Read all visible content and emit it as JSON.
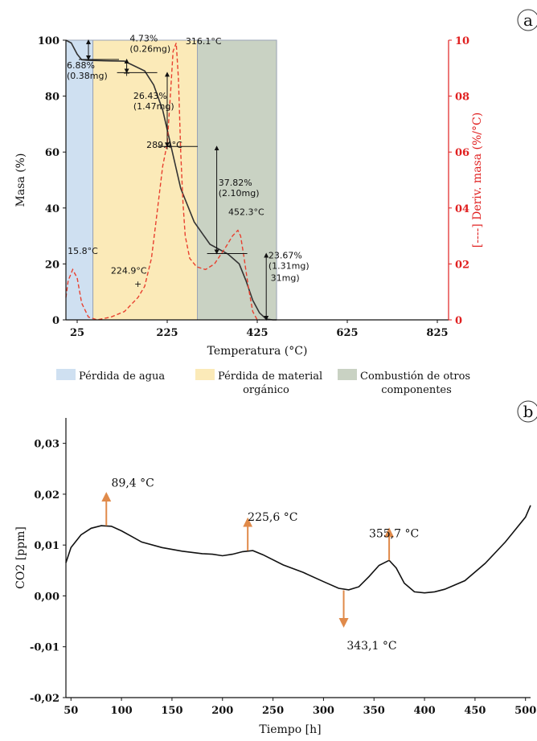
{
  "chart_data": [
    {
      "id": "a",
      "panel_label": "a",
      "type": "line",
      "xlabel": "Temperatura (°C)",
      "ylabel": "Masa (%)",
      "y2label": "[----] Deriv. masa (%/°C)",
      "xlim": [
        0,
        850
      ],
      "ylim": [
        0,
        100
      ],
      "y2lim": [
        0,
        10
      ],
      "x_ticks": [
        "25",
        "225",
        "425",
        "625",
        "825"
      ],
      "y_ticks": [
        "0",
        "20",
        "40",
        "60",
        "80",
        "100"
      ],
      "y2_ticks": [
        "0",
        "02",
        "04",
        "06",
        "08",
        "10"
      ],
      "regions": [
        {
          "name": "Pérdida de agua",
          "x_start": 0,
          "x_end": 60,
          "color": "#cfe0f1"
        },
        {
          "name": "Pérdida de material orgánico",
          "x_start": 60,
          "x_end": 292,
          "color": "#fbeab8"
        },
        {
          "name": "Combustión de otros componentes",
          "x_start": 292,
          "x_end": 468,
          "color": "#c9d2c3"
        }
      ],
      "legend_lines": [
        [
          "Pérdida de agua"
        ],
        [
          "Pérdida de material",
          "orgánico"
        ],
        [
          "Combustión de otros",
          "componentes"
        ]
      ],
      "series": [
        {
          "role": "mass",
          "axis": "left",
          "color": "#333333",
          "dash": "solid",
          "x": [
            0,
            12,
            25,
            35,
            50,
            100,
            130,
            175,
            195,
            215,
            235,
            255,
            285,
            320,
            360,
            385,
            400,
            415,
            430,
            445,
            460,
            468
          ],
          "y": [
            100,
            99,
            95,
            93,
            92.8,
            92.6,
            92.5,
            89,
            84,
            75,
            61,
            47,
            35,
            27,
            23.5,
            20,
            14,
            7,
            2.5,
            0.3,
            0,
            0
          ]
        },
        {
          "role": "derivative",
          "axis": "right",
          "color": "#e8402f",
          "dash": "dashed",
          "x": [
            0,
            5,
            15,
            25,
            35,
            50,
            70,
            100,
            130,
            160,
            175,
            190,
            200,
            215,
            225,
            232,
            238,
            245,
            250,
            255,
            260,
            265,
            275,
            290,
            310,
            330,
            355,
            370,
            382,
            388,
            395,
            405,
            415,
            425,
            430
          ],
          "y": [
            0.8,
            1.4,
            1.8,
            1.5,
            0.6,
            0.1,
            0,
            0.1,
            0.3,
            0.8,
            1.2,
            2.2,
            3.5,
            5.5,
            6.3,
            8.0,
            9.6,
            9.9,
            8.6,
            6.0,
            4.2,
            3.0,
            2.2,
            1.9,
            1.8,
            2.0,
            2.6,
            3.0,
            3.2,
            3.0,
            2.3,
            1.2,
            0.3,
            0,
            0
          ]
        }
      ],
      "step_markers": [
        {
          "x": 50,
          "from": 100,
          "to": 93.1
        },
        {
          "x": 135,
          "from": 93.1,
          "to": 88.4
        },
        {
          "x": 225,
          "from": 88.4,
          "to": 62
        },
        {
          "x": 335,
          "from": 62,
          "to": 23.7
        },
        {
          "x": 445,
          "from": 23.7,
          "to": 0
        }
      ],
      "annotations": [
        {
          "lines": [
            "6.88%",
            "(0.38mg)"
          ],
          "x": 0,
          "y": 90
        },
        {
          "lines": [
            "4.73%",
            "(0.26mg)"
          ],
          "x": 140,
          "y": 99.5
        },
        {
          "lines": [
            "316.1°C"
          ],
          "x": 264,
          "y": 98.5
        },
        {
          "lines": [
            "26.43%",
            "(1.47mg)"
          ],
          "x": 148,
          "y": 79
        },
        {
          "lines": [
            "289.4°C"
          ],
          "x": 177,
          "y": 61.5
        },
        {
          "lines": [
            "37.82%",
            "(2.10mg)"
          ],
          "x": 337,
          "y": 48
        },
        {
          "lines": [
            "452.3°C"
          ],
          "x": 359,
          "y": 37.5
        },
        {
          "lines": [
            "15.8°C"
          ],
          "x": 2,
          "y": 23.5
        },
        {
          "lines": [
            "224.9°C"
          ],
          "x": 98,
          "y": 16.5
        },
        {
          "lines": [
            "23.67%",
            "(1.31mg)"
          ],
          "x": 448,
          "y": 22
        },
        {
          "lines": [
            "31mg)"
          ],
          "x": 453,
          "y": 14
        }
      ],
      "peak_markers": [
        {
          "x": 135,
          "y": 88.4
        },
        {
          "x": 225,
          "y": 62
        },
        {
          "x": 160,
          "y": 13
        }
      ]
    },
    {
      "id": "b",
      "panel_label": "b",
      "type": "line",
      "xlabel": "Tiempo [h]",
      "ylabel": "CO2 [ppm]",
      "xlim": [
        45,
        505
      ],
      "ylim": [
        -0.02,
        0.035
      ],
      "x_ticks": [
        "50",
        "100",
        "150",
        "200",
        "250",
        "300",
        "350",
        "400",
        "450",
        "500"
      ],
      "y_ticks": [
        "-0,02",
        "-0,01",
        "0,00",
        "0,01",
        "0,02",
        "0,03"
      ],
      "series": [
        {
          "color": "#111111",
          "x": [
            45,
            50,
            60,
            70,
            80,
            90,
            100,
            110,
            120,
            140,
            160,
            180,
            190,
            200,
            210,
            220,
            230,
            240,
            260,
            280,
            300,
            315,
            325,
            335,
            345,
            355,
            365,
            372,
            380,
            390,
            400,
            410,
            420,
            440,
            460,
            480,
            500,
            505
          ],
          "y": [
            0.0065,
            0.0095,
            0.012,
            0.0133,
            0.0138,
            0.0137,
            0.0128,
            0.0117,
            0.0106,
            0.0095,
            0.0088,
            0.0083,
            0.0082,
            0.0079,
            0.0082,
            0.0087,
            0.0089,
            0.0081,
            0.0061,
            0.0046,
            0.0028,
            0.0015,
            0.0012,
            0.0018,
            0.0038,
            0.006,
            0.007,
            0.0055,
            0.0025,
            0.0008,
            0.0006,
            0.0008,
            0.0013,
            0.003,
            0.0064,
            0.0106,
            0.0155,
            0.0178
          ]
        }
      ],
      "arrows": [
        {
          "label": "89,4 °C",
          "x": 85,
          "y_from": 0.0138,
          "y_to": 0.0195,
          "direction": "up",
          "label_x": 90,
          "label_y": 0.0215
        },
        {
          "label": "225,6 °C",
          "x": 225,
          "y_from": 0.0089,
          "y_to": 0.0145,
          "direction": "up",
          "label_x": 225,
          "label_y": 0.0148
        },
        {
          "label": "355,7 °C",
          "x": 365,
          "y_from": 0.007,
          "y_to": 0.0125,
          "direction": "up",
          "label_x": 345,
          "label_y": 0.0115
        },
        {
          "label": "343,1 °C",
          "x": 320,
          "y_from": 0.0011,
          "y_to": -0.0053,
          "direction": "down",
          "label_x": 323,
          "label_y": -0.0105
        }
      ],
      "arrow_color": "#e08a4a"
    }
  ]
}
